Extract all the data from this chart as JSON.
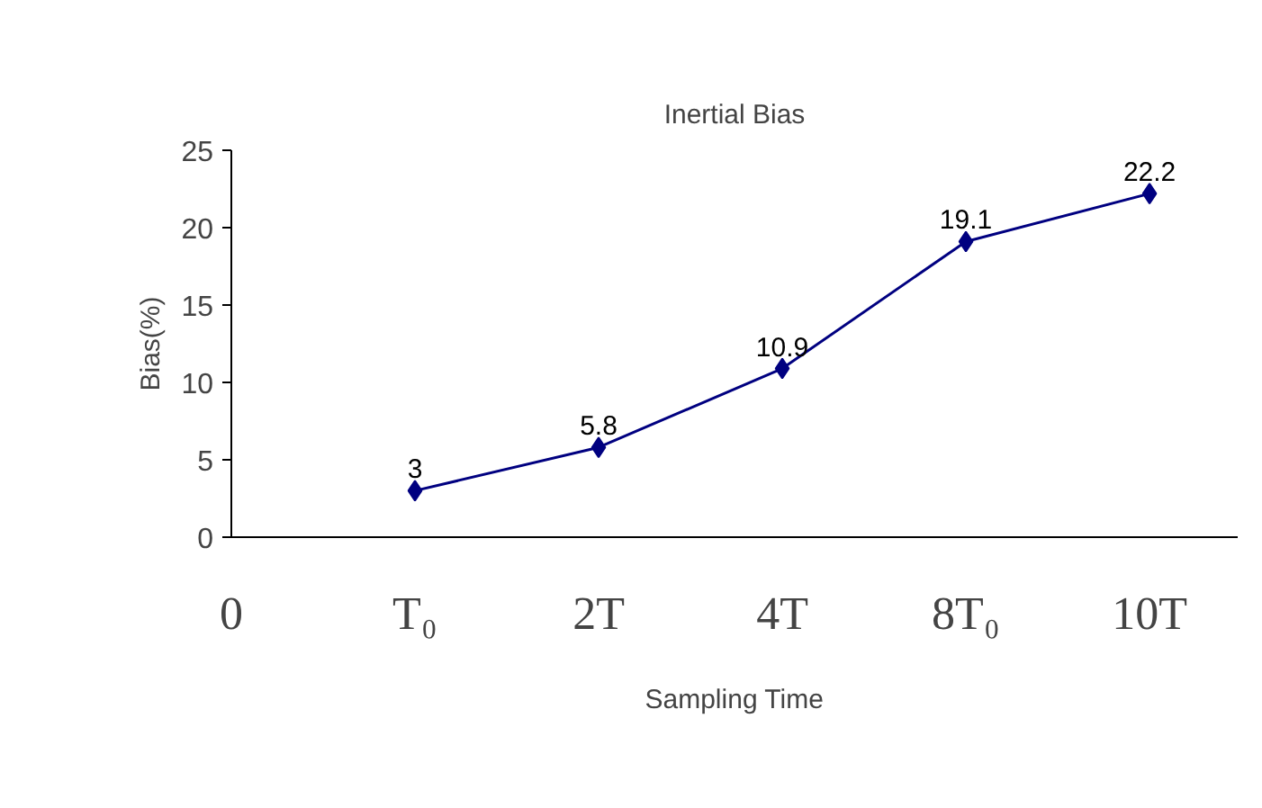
{
  "chart_data": {
    "type": "line",
    "title": "Inertial Bias",
    "xlabel": "Sampling Time",
    "ylabel": "Bias(%)",
    "categories": [
      "T₀",
      "2T",
      "4T",
      "8T₀",
      "10T"
    ],
    "series": [
      {
        "color": "#000080",
        "values": [
          3,
          5.8,
          10.9,
          19.1,
          22.2
        ]
      }
    ],
    "ylim": [
      0,
      25
    ],
    "yticks": [
      0,
      5,
      10,
      15,
      20,
      25
    ],
    "marker": "diamond",
    "line_style": "solid",
    "data_labels": true,
    "grid": false,
    "annotations": [
      "0"
    ]
  }
}
